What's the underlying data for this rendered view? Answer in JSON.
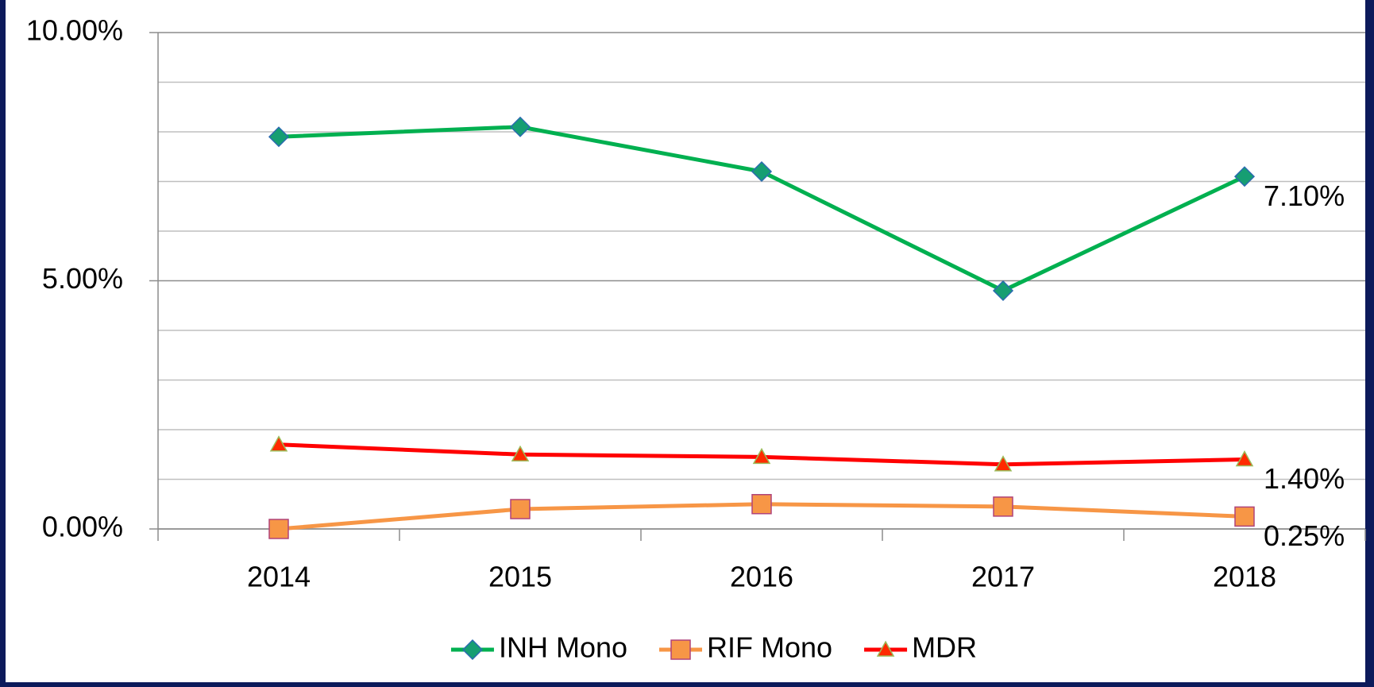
{
  "chart_data": {
    "type": "line",
    "categories": [
      "2014",
      "2015",
      "2016",
      "2017",
      "2018"
    ],
    "series": [
      {
        "name": "INH Mono",
        "color": "#00b050",
        "marker": "diamond",
        "marker_color": "#169e72",
        "marker_edge": "#2a6bb0",
        "values": [
          7.9,
          8.1,
          7.2,
          4.8,
          7.1
        ],
        "value_labels": [
          null,
          null,
          null,
          null,
          "7.10%"
        ]
      },
      {
        "name": "RIF Mono",
        "color": "#f79646",
        "marker": "square",
        "marker_color": "#f79646",
        "marker_edge": "#b0447a",
        "values": [
          0,
          0.4,
          0.5,
          0.45,
          0.25
        ],
        "value_labels": [
          null,
          null,
          null,
          null,
          "0.25%"
        ]
      },
      {
        "name": "MDR",
        "color": "#ff0000",
        "marker": "triangle",
        "marker_color": "#ff2a00",
        "marker_edge": "#9bbb59",
        "values": [
          1.7,
          1.5,
          1.45,
          1.3,
          1.4
        ],
        "value_labels": [
          null,
          null,
          null,
          null,
          "1.40%"
        ]
      }
    ],
    "ylim": [
      0,
      10
    ],
    "yticks": [
      {
        "value": 0,
        "label": "0.00%"
      },
      {
        "value": 5,
        "label": "5.00%"
      },
      {
        "value": 10,
        "label": "10.00%"
      }
    ],
    "minor_yticks": [
      1,
      2,
      3,
      4,
      6,
      7,
      8,
      9
    ],
    "grid": true,
    "legend": "bottom"
  }
}
